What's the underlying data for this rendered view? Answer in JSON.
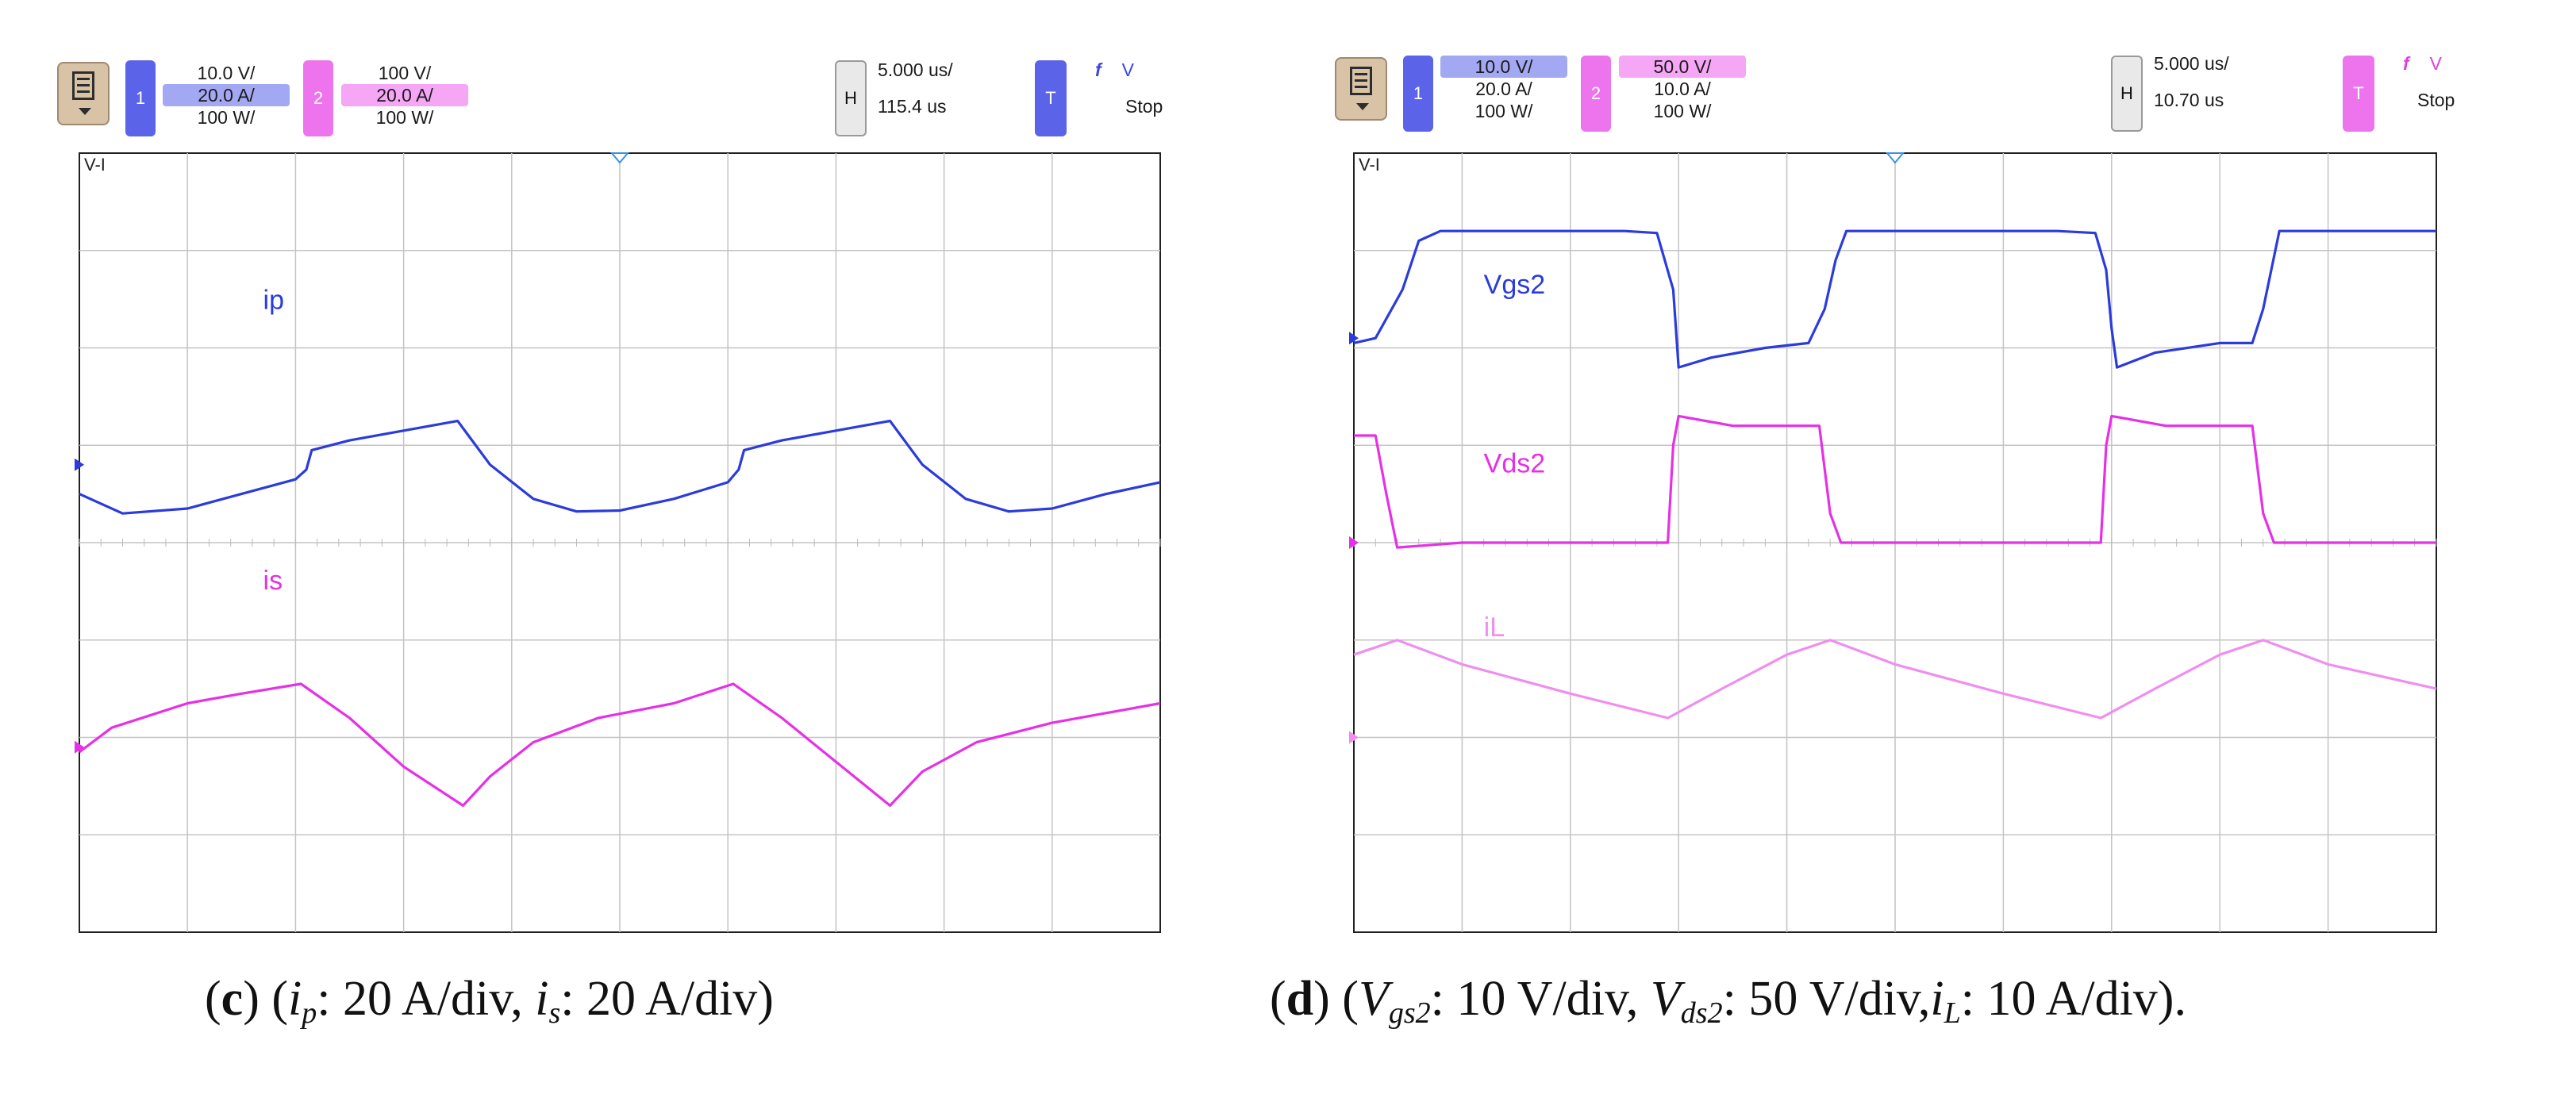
{
  "panels": [
    {
      "id": "c",
      "toolbar": {
        "ch1_scales": [
          "10.0 V/",
          "20.0 A/",
          "100 W/"
        ],
        "ch1_selected": 1,
        "ch2_scales": [
          "100 V/",
          "20.0 A/",
          "100 W/"
        ],
        "ch2_selected": 1,
        "ch1_label": "1",
        "ch2_label": "2",
        "h_label": "H",
        "time_per_div": "5.000 us/",
        "h_position": "115.4 us",
        "t_label": "T",
        "trigger_edge": "f",
        "trigger_source": "V",
        "status": "Stop",
        "trigger_color": "blue"
      },
      "mode_label": "V-I",
      "caption": {
        "letter": "c",
        "parts": [
          "(",
          "c",
          ") (",
          "i",
          "p",
          ": 20 A/div, ",
          "i",
          "s",
          ": 20 A/div)"
        ]
      },
      "chart_data": {
        "type": "line",
        "grid": {
          "x_divisions": 10,
          "y_divisions": 8,
          "on": true
        },
        "x_unit": "us",
        "time_per_div": 5,
        "series": [
          {
            "name": "ip",
            "color": "#2b3bdc",
            "scale": "20 A/div",
            "ground_div": 4.8,
            "points": [
              [
                0,
                4.5
              ],
              [
                0.4,
                4.3
              ],
              [
                1.0,
                4.35
              ],
              [
                1.5,
                4.5
              ],
              [
                2.0,
                4.65
              ],
              [
                2.1,
                4.75
              ],
              [
                2.15,
                4.95
              ],
              [
                2.5,
                5.05
              ],
              [
                3.0,
                5.15
              ],
              [
                3.5,
                5.25
              ],
              [
                3.6,
                5.1
              ],
              [
                3.8,
                4.8
              ],
              [
                4.2,
                4.45
              ],
              [
                4.6,
                4.32
              ],
              [
                5.0,
                4.33
              ],
              [
                5.5,
                4.45
              ],
              [
                6.0,
                4.62
              ],
              [
                6.1,
                4.75
              ],
              [
                6.15,
                4.95
              ],
              [
                6.5,
                5.05
              ],
              [
                7.0,
                5.15
              ],
              [
                7.5,
                5.25
              ],
              [
                7.6,
                5.1
              ],
              [
                7.8,
                4.8
              ],
              [
                8.2,
                4.45
              ],
              [
                8.6,
                4.32
              ],
              [
                9.0,
                4.35
              ],
              [
                9.5,
                4.5
              ],
              [
                10.0,
                4.62
              ]
            ]
          },
          {
            "name": "is",
            "color": "#e630e6",
            "scale": "20 A/div",
            "ground_div": 1.9,
            "points": [
              [
                0,
                1.85
              ],
              [
                0.3,
                2.1
              ],
              [
                1.0,
                2.35
              ],
              [
                1.5,
                2.45
              ],
              [
                2.05,
                2.55
              ],
              [
                2.5,
                2.2
              ],
              [
                3.0,
                1.7
              ],
              [
                3.55,
                1.3
              ],
              [
                3.8,
                1.6
              ],
              [
                4.2,
                1.95
              ],
              [
                4.8,
                2.2
              ],
              [
                5.5,
                2.35
              ],
              [
                6.05,
                2.55
              ],
              [
                6.5,
                2.2
              ],
              [
                7.0,
                1.75
              ],
              [
                7.5,
                1.3
              ],
              [
                7.8,
                1.65
              ],
              [
                8.3,
                1.95
              ],
              [
                9.0,
                2.15
              ],
              [
                10.0,
                2.35
              ]
            ]
          }
        ],
        "annotations": [
          {
            "text": "ip",
            "color": "#2b3bdc"
          },
          {
            "text": "is",
            "color": "#e630e6"
          }
        ]
      }
    },
    {
      "id": "d",
      "toolbar": {
        "ch1_scales": [
          "10.0 V/",
          "20.0 A/",
          "100 W/"
        ],
        "ch1_selected": 0,
        "ch2_scales": [
          "50.0 V/",
          "10.0 A/",
          "100 W/"
        ],
        "ch2_selected": 0,
        "ch1_label": "1",
        "ch2_label": "2",
        "h_label": "H",
        "time_per_div": "5.000 us/",
        "h_position": "10.70 us",
        "t_label": "T",
        "trigger_edge": "f",
        "trigger_source": "V",
        "status": "Stop",
        "trigger_color": "pink"
      },
      "mode_label": "V-I",
      "caption": {
        "letter": "d",
        "parts": [
          "(",
          "d",
          ") (",
          "V",
          "gs2",
          ": 10 V/div, ",
          "V",
          "ds2",
          ": 50 V/div,",
          "i",
          "L",
          ": 10 A/div)."
        ]
      },
      "chart_data": {
        "type": "line",
        "grid": {
          "x_divisions": 10,
          "y_divisions": 8,
          "on": true
        },
        "x_unit": "us",
        "time_per_div": 5,
        "series": [
          {
            "name": "Vgs2",
            "color": "#2b3bdc",
            "scale": "10 V/div",
            "ground_div": 6.1,
            "points": [
              [
                0,
                6.05
              ],
              [
                0.2,
                6.1
              ],
              [
                0.45,
                6.6
              ],
              [
                0.6,
                7.1
              ],
              [
                0.8,
                7.2
              ],
              [
                1.0,
                7.2
              ],
              [
                2.5,
                7.2
              ],
              [
                2.8,
                7.18
              ],
              [
                2.95,
                6.6
              ],
              [
                3.0,
                5.8
              ],
              [
                3.3,
                5.9
              ],
              [
                3.8,
                6.0
              ],
              [
                4.2,
                6.05
              ],
              [
                4.35,
                6.4
              ],
              [
                4.45,
                6.9
              ],
              [
                4.55,
                7.2
              ],
              [
                5.0,
                7.2
              ],
              [
                6.5,
                7.2
              ],
              [
                6.85,
                7.18
              ],
              [
                6.95,
                6.8
              ],
              [
                7.0,
                6.2
              ],
              [
                7.05,
                5.8
              ],
              [
                7.4,
                5.95
              ],
              [
                8.0,
                6.05
              ],
              [
                8.3,
                6.05
              ],
              [
                8.4,
                6.4
              ],
              [
                8.55,
                7.2
              ],
              [
                9.0,
                7.2
              ],
              [
                10.0,
                7.2
              ]
            ]
          },
          {
            "name": "Vds2",
            "color": "#e630e6",
            "scale": "50 V/div",
            "ground_div": 4.0,
            "points": [
              [
                0,
                5.1
              ],
              [
                0.2,
                5.1
              ],
              [
                0.3,
                4.5
              ],
              [
                0.4,
                3.95
              ],
              [
                1.0,
                4.0
              ],
              [
                2.5,
                4.0
              ],
              [
                2.9,
                4.0
              ],
              [
                2.95,
                5.0
              ],
              [
                3.0,
                5.3
              ],
              [
                3.5,
                5.2
              ],
              [
                4.3,
                5.2
              ],
              [
                4.4,
                4.3
              ],
              [
                4.5,
                4.0
              ],
              [
                5.0,
                4.0
              ],
              [
                6.5,
                4.0
              ],
              [
                6.9,
                4.0
              ],
              [
                6.95,
                5.0
              ],
              [
                7.0,
                5.3
              ],
              [
                7.5,
                5.2
              ],
              [
                8.3,
                5.2
              ],
              [
                8.4,
                4.3
              ],
              [
                8.5,
                4.0
              ],
              [
                10.0,
                4.0
              ]
            ]
          },
          {
            "name": "iL",
            "color": "#f08ef0",
            "scale": "10 A/div",
            "ground_div": 2.0,
            "points": [
              [
                0,
                2.85
              ],
              [
                0.4,
                3.0
              ],
              [
                1.0,
                2.75
              ],
              [
                2.0,
                2.45
              ],
              [
                2.9,
                2.2
              ],
              [
                3.4,
                2.5
              ],
              [
                4.0,
                2.85
              ],
              [
                4.4,
                3.0
              ],
              [
                5.0,
                2.75
              ],
              [
                6.0,
                2.45
              ],
              [
                6.9,
                2.2
              ],
              [
                7.4,
                2.5
              ],
              [
                8.0,
                2.85
              ],
              [
                8.4,
                3.0
              ],
              [
                9.0,
                2.75
              ],
              [
                10.0,
                2.5
              ]
            ]
          }
        ],
        "annotations": [
          {
            "text": "Vgs2",
            "color": "#2b3bdc"
          },
          {
            "text": "Vds2",
            "color": "#e630e6"
          },
          {
            "text": "iL",
            "color": "#f08ef0"
          }
        ]
      }
    }
  ]
}
